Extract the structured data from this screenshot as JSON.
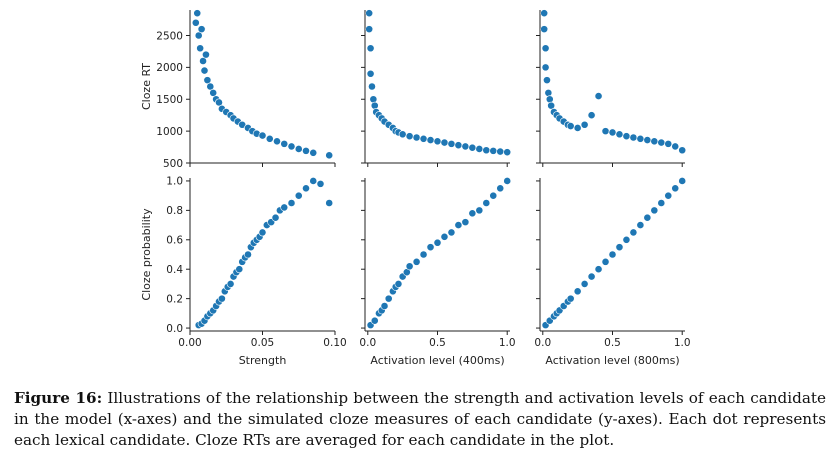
{
  "chart_data": {
    "type": "scatter",
    "layout": "pair-grid 2 rows x 3 columns",
    "point_color": "#1f77b4",
    "grid": false,
    "row_labels": [
      "Cloze RT",
      "Cloze probability"
    ],
    "column_labels": [
      "Strength",
      "Activation level (400ms)",
      "Activation level (800ms)"
    ],
    "rows": [
      {
        "ylabel": "Cloze RT",
        "ylim": [
          500,
          2900
        ],
        "yticks": [
          500,
          1000,
          1500,
          2000,
          2500
        ]
      },
      {
        "ylabel": "Cloze probability",
        "ylim": [
          -0.02,
          1.02
        ],
        "yticks": [
          0.0,
          0.2,
          0.4,
          0.6,
          0.8,
          1.0
        ]
      }
    ],
    "columns": [
      {
        "xlabel": "Strength",
        "xlim": [
          0.0,
          0.1
        ],
        "xticks": [
          0.0,
          0.05,
          0.1
        ],
        "xtick_labels": [
          "0.00",
          "0.05",
          "0.10"
        ]
      },
      {
        "xlabel": "Activation level (400ms)",
        "xlim": [
          -0.02,
          1.02
        ],
        "xticks": [
          0.0,
          0.5,
          1.0
        ],
        "xtick_labels": [
          "0.0",
          "0.5",
          "1.0"
        ]
      },
      {
        "xlabel": "Activation level (800ms)",
        "xlim": [
          -0.02,
          1.02
        ],
        "xticks": [
          0.0,
          0.5,
          1.0
        ],
        "xtick_labels": [
          "0.0",
          "0.5",
          "1.0"
        ]
      }
    ],
    "panels": [
      {
        "row": 0,
        "col": 0,
        "x": [
          0.004,
          0.005,
          0.006,
          0.007,
          0.008,
          0.009,
          0.01,
          0.011,
          0.012,
          0.014,
          0.016,
          0.018,
          0.02,
          0.022,
          0.025,
          0.028,
          0.03,
          0.033,
          0.036,
          0.04,
          0.043,
          0.046,
          0.05,
          0.055,
          0.06,
          0.065,
          0.07,
          0.075,
          0.08,
          0.085,
          0.096
        ],
        "y": [
          2700,
          2850,
          2500,
          2300,
          2600,
          2100,
          1950,
          2200,
          1800,
          1700,
          1600,
          1500,
          1450,
          1350,
          1300,
          1250,
          1200,
          1150,
          1100,
          1050,
          1000,
          960,
          930,
          880,
          840,
          800,
          760,
          720,
          690,
          660,
          620
        ]
      },
      {
        "row": 0,
        "col": 1,
        "x": [
          0.01,
          0.01,
          0.02,
          0.02,
          0.03,
          0.04,
          0.05,
          0.06,
          0.08,
          0.1,
          0.12,
          0.15,
          0.18,
          0.2,
          0.22,
          0.25,
          0.3,
          0.35,
          0.4,
          0.45,
          0.5,
          0.55,
          0.6,
          0.65,
          0.7,
          0.75,
          0.8,
          0.85,
          0.9,
          0.95,
          1.0
        ],
        "y": [
          2850,
          2600,
          2300,
          1900,
          1700,
          1500,
          1400,
          1300,
          1250,
          1200,
          1150,
          1100,
          1050,
          1000,
          980,
          950,
          920,
          900,
          880,
          860,
          840,
          820,
          800,
          780,
          760,
          740,
          720,
          700,
          690,
          680,
          670
        ]
      },
      {
        "row": 0,
        "col": 2,
        "x": [
          0.01,
          0.01,
          0.02,
          0.02,
          0.03,
          0.04,
          0.05,
          0.06,
          0.08,
          0.1,
          0.12,
          0.15,
          0.18,
          0.2,
          0.25,
          0.3,
          0.35,
          0.4,
          0.45,
          0.5,
          0.55,
          0.6,
          0.65,
          0.7,
          0.75,
          0.8,
          0.85,
          0.9,
          0.95,
          1.0
        ],
        "y": [
          2850,
          2600,
          2300,
          2000,
          1800,
          1600,
          1500,
          1400,
          1300,
          1250,
          1200,
          1150,
          1100,
          1080,
          1050,
          1100,
          1250,
          1550,
          1000,
          980,
          950,
          920,
          900,
          880,
          860,
          840,
          820,
          800,
          760,
          700
        ]
      },
      {
        "row": 1,
        "col": 0,
        "x": [
          0.006,
          0.008,
          0.01,
          0.012,
          0.014,
          0.016,
          0.018,
          0.02,
          0.022,
          0.024,
          0.026,
          0.028,
          0.03,
          0.032,
          0.034,
          0.036,
          0.038,
          0.04,
          0.042,
          0.044,
          0.046,
          0.048,
          0.05,
          0.053,
          0.056,
          0.059,
          0.062,
          0.065,
          0.07,
          0.075,
          0.08,
          0.085,
          0.09,
          0.096
        ],
        "y": [
          0.02,
          0.03,
          0.05,
          0.08,
          0.1,
          0.12,
          0.15,
          0.18,
          0.2,
          0.25,
          0.28,
          0.3,
          0.35,
          0.38,
          0.4,
          0.45,
          0.48,
          0.5,
          0.55,
          0.58,
          0.6,
          0.62,
          0.65,
          0.7,
          0.72,
          0.75,
          0.8,
          0.82,
          0.85,
          0.9,
          0.95,
          1.0,
          0.98,
          0.85
        ]
      },
      {
        "row": 1,
        "col": 1,
        "x": [
          0.02,
          0.05,
          0.08,
          0.1,
          0.12,
          0.15,
          0.18,
          0.2,
          0.22,
          0.25,
          0.28,
          0.3,
          0.35,
          0.4,
          0.45,
          0.5,
          0.55,
          0.6,
          0.65,
          0.7,
          0.75,
          0.8,
          0.85,
          0.9,
          0.95,
          1.0
        ],
        "y": [
          0.02,
          0.05,
          0.1,
          0.12,
          0.15,
          0.2,
          0.25,
          0.28,
          0.3,
          0.35,
          0.38,
          0.42,
          0.45,
          0.5,
          0.55,
          0.58,
          0.62,
          0.65,
          0.7,
          0.72,
          0.78,
          0.8,
          0.85,
          0.9,
          0.95,
          1.0
        ]
      },
      {
        "row": 1,
        "col": 2,
        "x": [
          0.02,
          0.05,
          0.08,
          0.1,
          0.12,
          0.15,
          0.18,
          0.2,
          0.25,
          0.3,
          0.35,
          0.4,
          0.45,
          0.5,
          0.55,
          0.6,
          0.65,
          0.7,
          0.75,
          0.8,
          0.85,
          0.9,
          0.95,
          1.0
        ],
        "y": [
          0.02,
          0.05,
          0.08,
          0.1,
          0.12,
          0.15,
          0.18,
          0.2,
          0.25,
          0.3,
          0.35,
          0.4,
          0.45,
          0.5,
          0.55,
          0.6,
          0.65,
          0.7,
          0.75,
          0.8,
          0.85,
          0.9,
          0.95,
          1.0
        ]
      }
    ]
  },
  "caption": {
    "label": "Figure 16:",
    "text": "Illustrations of the relationship between the strength and activation levels of each candidate in the model (x-axes) and the simulated cloze measures of each candidate (y-axes). Each dot represents each lexical candidate. Cloze RTs are averaged for each candidate in the plot."
  }
}
